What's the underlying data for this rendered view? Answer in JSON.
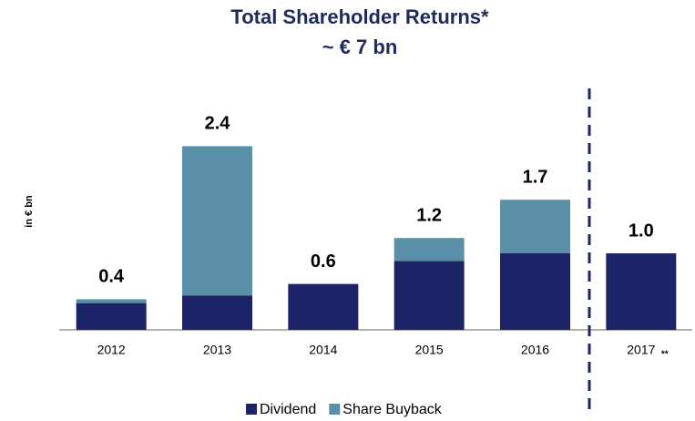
{
  "chart_data": {
    "type": "stacked_bar",
    "title": "Total Shareholder Returns*",
    "subtitle": "~ € 7 bn",
    "y_label": "in € bn",
    "categories": [
      "2012",
      "2013",
      "2014",
      "2015",
      "2016",
      "2017"
    ],
    "footnote_mark": "**",
    "series": [
      {
        "name": "Dividend",
        "color": "#1c2366",
        "values": [
          0.35,
          0.45,
          0.6,
          0.9,
          1.0,
          1.0
        ]
      },
      {
        "name": "Share Buyback",
        "color": "#5a8fa8",
        "values": [
          0.05,
          1.95,
          0,
          0.3,
          0.7,
          0
        ]
      }
    ],
    "totals": [
      0.4,
      2.4,
      0.6,
      1.2,
      1.7,
      1.0
    ],
    "total_labels": [
      "0.4",
      "2.4",
      "0.6",
      "1.2",
      "1.7",
      "1.0"
    ],
    "ylim": [
      0,
      2.5
    ],
    "legend": "bottom"
  }
}
